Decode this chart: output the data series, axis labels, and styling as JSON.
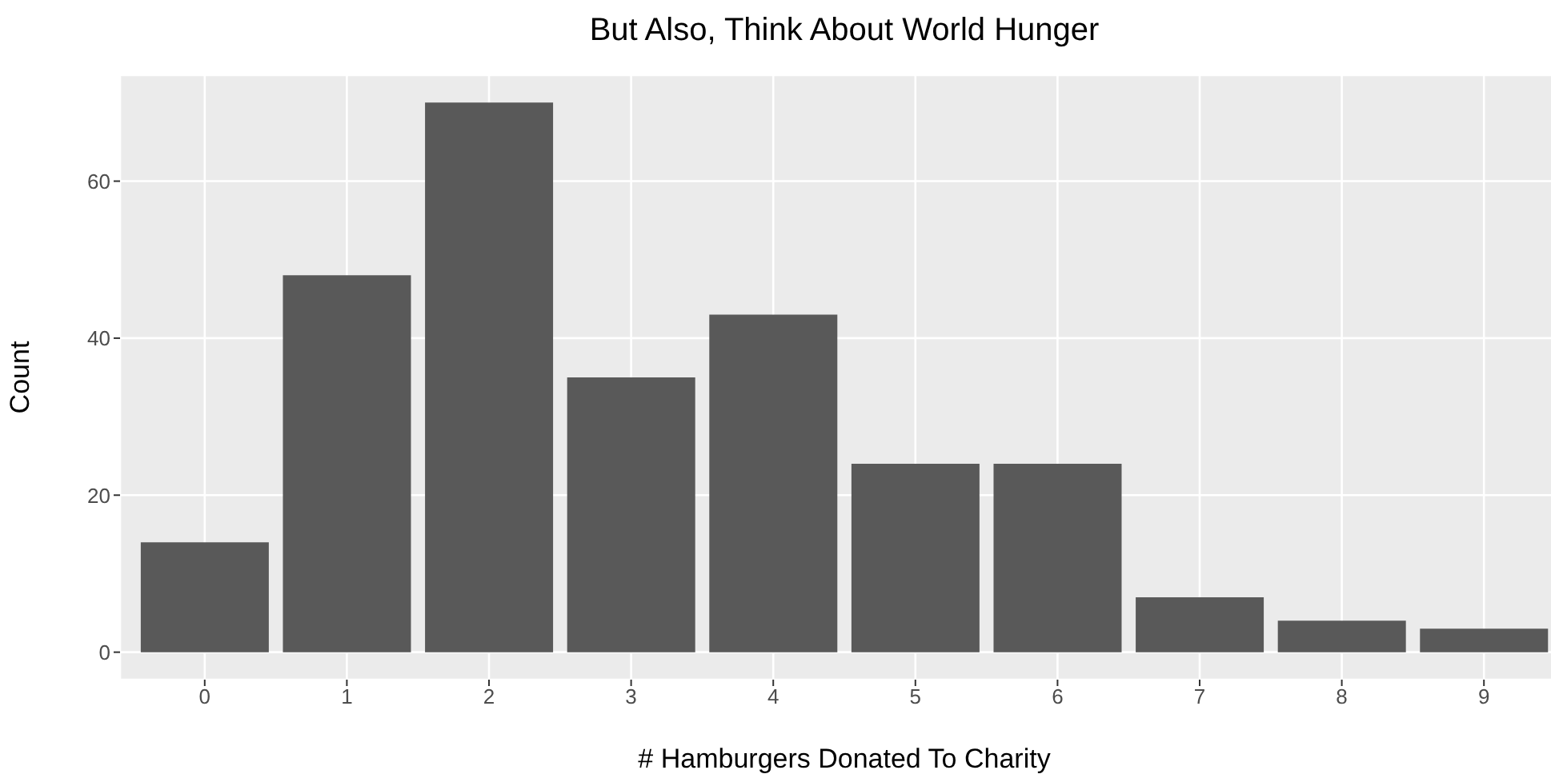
{
  "chart_data": {
    "type": "bar",
    "title": "But Also, Think About World Hunger",
    "xlabel": "# Hamburgers Donated To Charity",
    "ylabel": "Count",
    "categories": [
      "0",
      "1",
      "2",
      "3",
      "4",
      "5",
      "6",
      "7",
      "8",
      "9"
    ],
    "values": [
      14,
      48,
      70,
      35,
      43,
      24,
      24,
      7,
      4,
      3
    ],
    "color": "#595959",
    "ylim": [
      -3.5,
      73.5
    ],
    "yticks": [
      0,
      20,
      40,
      60
    ],
    "grid": true
  }
}
